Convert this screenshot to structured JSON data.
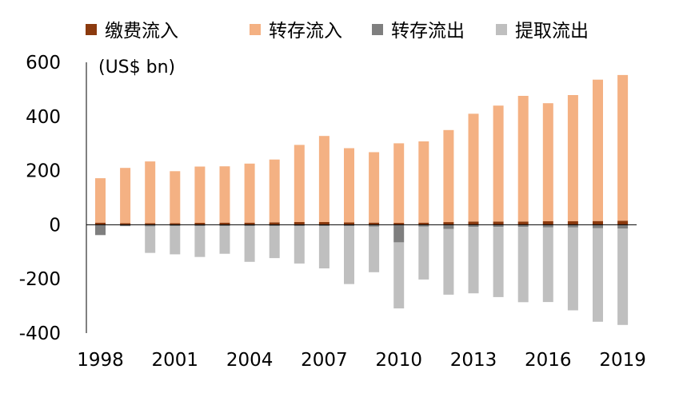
{
  "chart_data": {
    "type": "bar",
    "stacked": true,
    "unit_label": "(US$ bn)",
    "ylim": [
      -400,
      600
    ],
    "yticks": [
      "600",
      "400",
      "200",
      "0",
      "-200",
      "-400"
    ],
    "ytick_values": [
      600,
      400,
      200,
      0,
      -200,
      -400
    ],
    "categories": [
      "1998",
      "1999",
      "2000",
      "2001",
      "2002",
      "2003",
      "2004",
      "2005",
      "2006",
      "2007",
      "2008",
      "2009",
      "2010",
      "2011",
      "2012",
      "2013",
      "2014",
      "2015",
      "2016",
      "2017",
      "2018",
      "2019"
    ],
    "xtick_labels": [
      "1998",
      "2001",
      "2004",
      "2007",
      "2010",
      "2013",
      "2016",
      "2019"
    ],
    "legend_position": "top",
    "series": [
      {
        "name": "缴费流入",
        "color": "#8B3A0E",
        "values": [
          8,
          6,
          6,
          6,
          7,
          8,
          8,
          9,
          10,
          10,
          9,
          8,
          7,
          8,
          10,
          12,
          12,
          12,
          13,
          13,
          14,
          15
        ]
      },
      {
        "name": "转存流入",
        "color": "#F4B183",
        "values": [
          164,
          204,
          228,
          192,
          208,
          208,
          218,
          232,
          285,
          318,
          274,
          260,
          294,
          300,
          340,
          398,
          428,
          464,
          436,
          466,
          522,
          538
        ]
      },
      {
        "name": "转存流出",
        "color": "#7F7F7F",
        "values": [
          -38,
          -5,
          -6,
          -5,
          -5,
          -5,
          -5,
          -5,
          -5,
          -5,
          -5,
          -7,
          -65,
          -7,
          -15,
          -8,
          -8,
          -8,
          -9,
          -10,
          -12,
          -14
        ]
      },
      {
        "name": "提取流出",
        "color": "#BFBFBF",
        "values": [
          0,
          0,
          -98,
          -104,
          -114,
          -102,
          -132,
          -118,
          -138,
          -156,
          -214,
          -168,
          -244,
          -195,
          -243,
          -245,
          -259,
          -278,
          -276,
          -306,
          -346,
          -356
        ]
      }
    ]
  }
}
